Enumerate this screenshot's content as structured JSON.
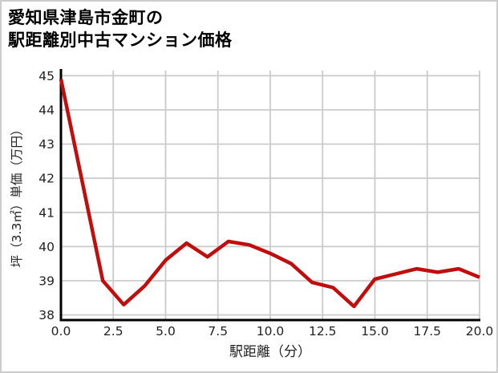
{
  "title_lines": [
    "愛知県津島市金町の",
    "駅距離別中古マンション価格"
  ],
  "chart_data": {
    "type": "line",
    "title": "愛知県津島市金町の駅距離別中古マンション価格",
    "xlabel": "駅距離（分）",
    "ylabel": "坪（3.3㎡）単価（万円）",
    "x": [
      0,
      1,
      2,
      3,
      4,
      5,
      6,
      7,
      8,
      9,
      10,
      11,
      12,
      13,
      14,
      15,
      16,
      17,
      18,
      19,
      20
    ],
    "series": [
      {
        "name": "坪単価",
        "values": [
          44.9,
          41.95,
          39.0,
          38.3,
          38.85,
          39.6,
          40.1,
          39.7,
          40.15,
          40.05,
          39.8,
          39.5,
          38.95,
          38.8,
          38.25,
          39.05,
          39.2,
          39.35,
          39.25,
          39.35,
          39.1
        ]
      }
    ],
    "x_ticks": [
      "0.0",
      "2.5",
      "5.0",
      "7.5",
      "10.0",
      "12.5",
      "15.0",
      "17.5",
      "20.0"
    ],
    "y_ticks": [
      "38",
      "39",
      "40",
      "41",
      "42",
      "43",
      "44",
      "45"
    ],
    "xlim": [
      0,
      20
    ],
    "ylim": [
      37.85,
      45.15
    ],
    "grid": true,
    "legend": false,
    "colors": {
      "line": "#c20d0d",
      "grid": "#cbcbcb",
      "axis": "#000000",
      "tick_label": "#222222",
      "axis_label": "#222222",
      "frame_border": "#cccccc",
      "background": "#ffffff"
    }
  }
}
